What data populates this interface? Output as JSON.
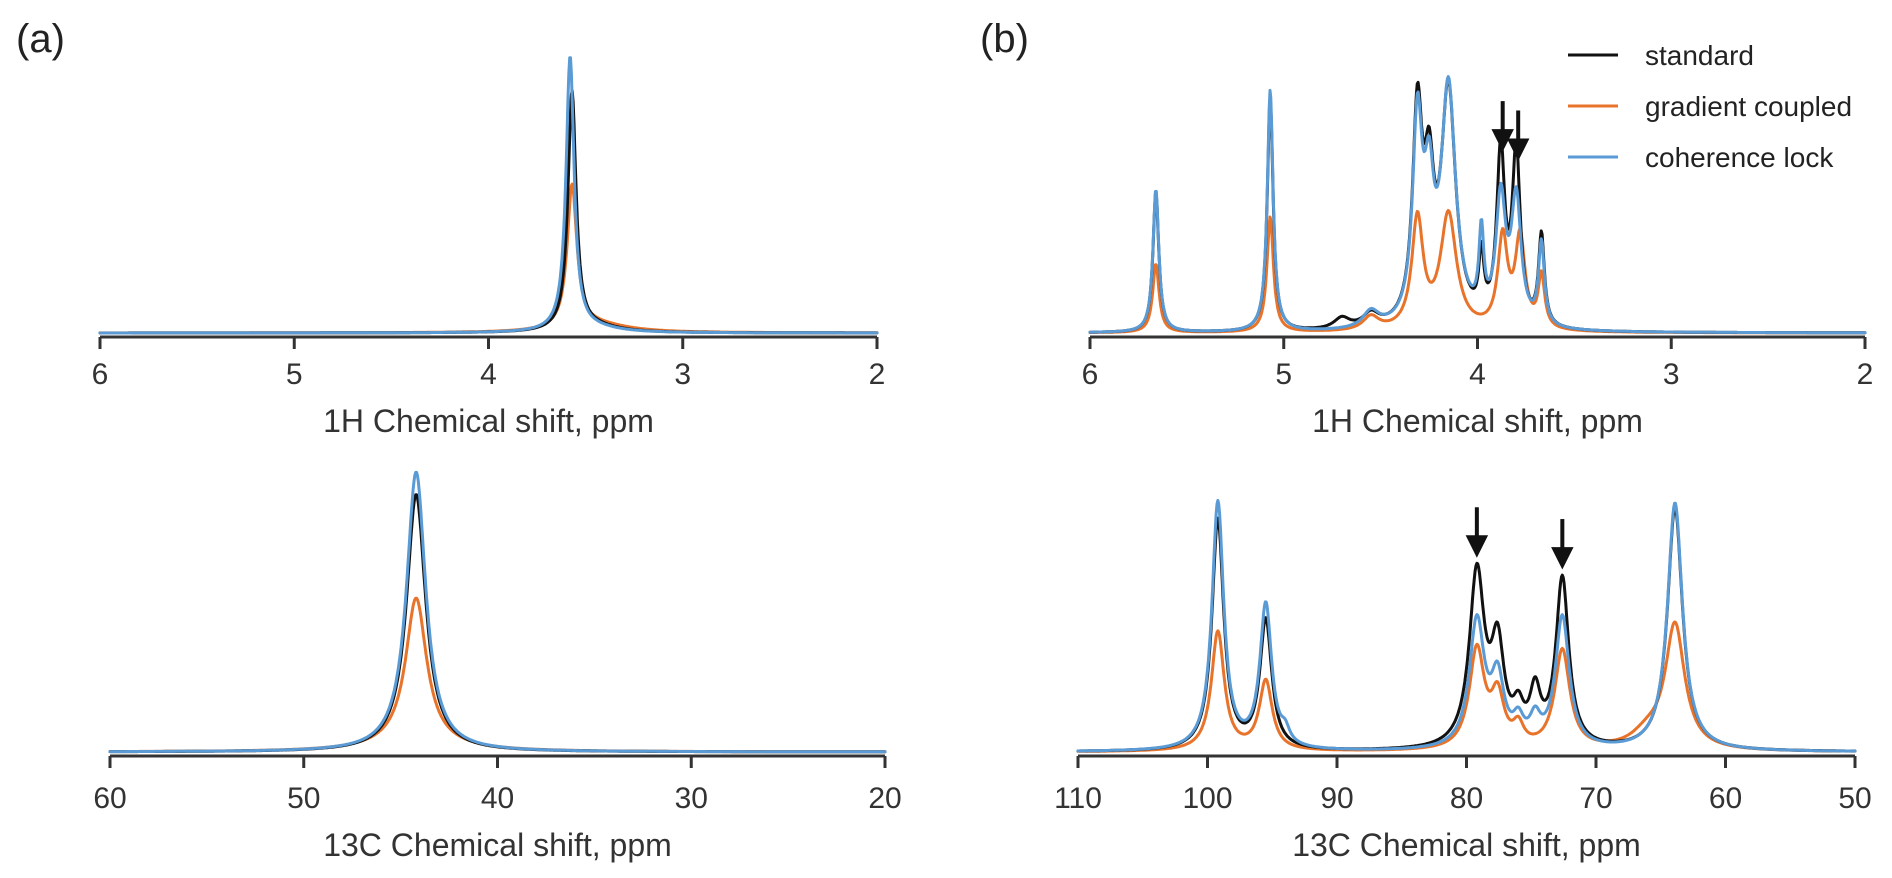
{
  "colors": {
    "standard": "#111111",
    "gradient": "#e8732b",
    "coherence": "#5b9bd5"
  },
  "panel_labels": [
    "(a)",
    "(b)"
  ],
  "legend": [
    {
      "name": "standard",
      "color": "#111111"
    },
    {
      "name": "gradient coupled",
      "color": "#e8732b"
    },
    {
      "name": "coherence lock",
      "color": "#5b9bd5"
    }
  ],
  "chart_data": [
    {
      "id": "a-1h",
      "type": "line",
      "panel": "(a)",
      "xlabel": "1H Chemical shift, ppm",
      "ylabel": "",
      "xlim": [
        6,
        2
      ],
      "ylim": [
        0,
        1.0
      ],
      "reversed_x": true,
      "xticks": [
        6,
        5,
        4,
        3,
        2
      ],
      "baseline": {
        "standard": 0.0,
        "gradient": 0.0,
        "coherence": 0.0
      },
      "arrows": [],
      "series": [
        {
          "name": "standard",
          "peaks": [
            [
              3.57,
              0.87,
              0.025
            ],
            [
              3.45,
              0.02,
              0.15
            ]
          ]
        },
        {
          "name": "gradient coupled",
          "peaks": [
            [
              3.57,
              0.52,
              0.03
            ],
            [
              3.45,
              0.03,
              0.2
            ]
          ]
        },
        {
          "name": "coherence lock",
          "peaks": [
            [
              3.58,
              1.0,
              0.025
            ],
            [
              3.45,
              0.015,
              0.15
            ]
          ]
        }
      ]
    },
    {
      "id": "a-13c",
      "type": "line",
      "panel": "(a)",
      "xlabel": "13C Chemical shift, ppm",
      "ylabel": "",
      "xlim": [
        60,
        20
      ],
      "ylim": [
        0,
        1.0
      ],
      "reversed_x": true,
      "xticks": [
        60,
        50,
        40,
        30,
        20
      ],
      "baseline": {
        "standard": 0.0,
        "gradient": 0.0,
        "coherence": 0.0
      },
      "arrows": [],
      "series": [
        {
          "name": "standard",
          "peaks": [
            [
              44.2,
              0.92,
              0.6
            ]
          ]
        },
        {
          "name": "gradient coupled",
          "peaks": [
            [
              44.2,
              0.52,
              0.65
            ],
            [
              44.2,
              0.03,
              2.5
            ]
          ]
        },
        {
          "name": "coherence lock",
          "peaks": [
            [
              44.2,
              1.0,
              0.6
            ]
          ]
        }
      ]
    },
    {
      "id": "b-1h",
      "type": "line",
      "panel": "(b)",
      "xlabel": "1H Chemical shift, ppm",
      "ylabel": "",
      "xlim": [
        6,
        2
      ],
      "ylim": [
        0,
        1.0
      ],
      "reversed_x": true,
      "xticks": [
        6,
        5,
        4,
        3,
        2
      ],
      "baseline": {
        "standard": 0.0,
        "gradient": 0.0,
        "coherence": 0.0
      },
      "arrows": [
        3.87,
        3.79
      ],
      "series": [
        {
          "name": "standard",
          "peaks": [
            [
              5.66,
              0.51,
              0.018
            ],
            [
              5.07,
              0.85,
              0.018
            ],
            [
              4.55,
              0.05,
              0.05
            ],
            [
              4.7,
              0.04,
              0.05
            ],
            [
              4.31,
              0.75,
              0.03
            ],
            [
              4.25,
              0.45,
              0.03
            ],
            [
              4.15,
              0.85,
              0.045
            ],
            [
              3.98,
              0.22,
              0.015
            ],
            [
              3.88,
              0.62,
              0.025
            ],
            [
              3.8,
              0.62,
              0.025
            ],
            [
              3.67,
              0.33,
              0.018
            ]
          ]
        },
        {
          "name": "gradient coupled",
          "peaks": [
            [
              5.66,
              0.25,
              0.02
            ],
            [
              5.07,
              0.42,
              0.02
            ],
            [
              4.55,
              0.05,
              0.05
            ],
            [
              4.31,
              0.4,
              0.035
            ],
            [
              4.15,
              0.42,
              0.05
            ],
            [
              3.87,
              0.33,
              0.03
            ],
            [
              3.78,
              0.33,
              0.03
            ],
            [
              3.67,
              0.19,
              0.02
            ]
          ]
        },
        {
          "name": "coherence lock",
          "peaks": [
            [
              5.66,
              0.52,
              0.018
            ],
            [
              5.07,
              0.88,
              0.018
            ],
            [
              4.55,
              0.06,
              0.05
            ],
            [
              4.31,
              0.72,
              0.03
            ],
            [
              4.25,
              0.42,
              0.03
            ],
            [
              4.15,
              0.86,
              0.045
            ],
            [
              3.98,
              0.3,
              0.015
            ],
            [
              3.88,
              0.45,
              0.03
            ],
            [
              3.8,
              0.45,
              0.03
            ],
            [
              3.67,
              0.3,
              0.018
            ]
          ]
        }
      ]
    },
    {
      "id": "b-13c",
      "type": "line",
      "panel": "(b)",
      "xlabel": "13C Chemical shift, ppm",
      "ylabel": "",
      "xlim": [
        110,
        50
      ],
      "ylim": [
        0,
        1.0
      ],
      "reversed_x": true,
      "xticks": [
        110,
        100,
        90,
        80,
        70,
        60,
        50
      ],
      "baseline": {
        "standard": 0.0,
        "gradient": 0.0,
        "coherence": 0.0
      },
      "arrows": [
        79.2,
        72.6
      ],
      "series": [
        {
          "name": "standard",
          "peaks": [
            [
              99.2,
              0.93,
              0.55
            ],
            [
              95.5,
              0.52,
              0.55
            ],
            [
              79.2,
              0.7,
              0.7
            ],
            [
              77.6,
              0.38,
              0.6
            ],
            [
              76.0,
              0.12,
              0.5
            ],
            [
              74.7,
              0.2,
              0.5
            ],
            [
              72.6,
              0.68,
              0.6
            ],
            [
              63.9,
              0.98,
              0.7
            ]
          ]
        },
        {
          "name": "gradient coupled",
          "peaks": [
            [
              99.2,
              0.48,
              0.6
            ],
            [
              95.5,
              0.28,
              0.6
            ],
            [
              79.2,
              0.4,
              0.7
            ],
            [
              77.6,
              0.2,
              0.6
            ],
            [
              76.0,
              0.08,
              0.5
            ],
            [
              72.6,
              0.4,
              0.7
            ],
            [
              63.9,
              0.5,
              0.9
            ],
            [
              66.0,
              0.06,
              1.5
            ]
          ]
        },
        {
          "name": "coherence lock",
          "peaks": [
            [
              99.2,
              1.0,
              0.55
            ],
            [
              95.5,
              0.58,
              0.55
            ],
            [
              94.0,
              0.05,
              0.4
            ],
            [
              79.2,
              0.51,
              0.7
            ],
            [
              77.6,
              0.26,
              0.6
            ],
            [
              76.0,
              0.09,
              0.5
            ],
            [
              74.7,
              0.1,
              0.5
            ],
            [
              72.6,
              0.53,
              0.65
            ],
            [
              63.9,
              1.0,
              0.7
            ]
          ]
        }
      ]
    }
  ]
}
